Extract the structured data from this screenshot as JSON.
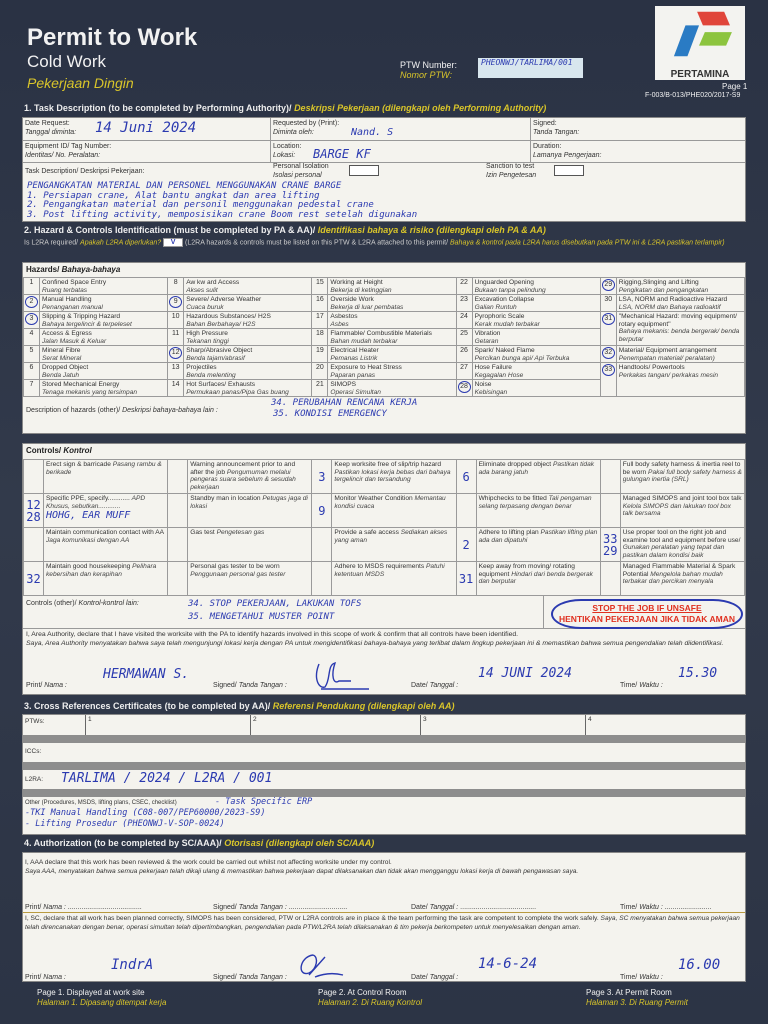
{
  "header": {
    "title": "Permit to Work",
    "subtitle": "Cold Work",
    "subtitle_id": "Pekerjaan Dingin",
    "ptw_label": "PTW Number:",
    "ptw_label_id": "Nomor PTW:",
    "ptw_value": "PHEONWJ/TARLIMA/001",
    "logo_text": "PERTAMINA",
    "page": "Page 1",
    "form_code": "F-003/B-013/PHE020/2017-S9"
  },
  "s1": {
    "title": "1. Task Description (to be completed by Performing Authority)/",
    "title_id": "Deskripsi Pekerjaan (dilengkapi oleh Performing Authority)",
    "date_label": "Date Request:",
    "date_label_id": "Tanggal diminta:",
    "date_value": "14 Juni 2024",
    "req_label": "Requested by (Print):",
    "req_label_id": "Diminta oleh:",
    "req_value": "Nand. S",
    "signed_label": "Signed:",
    "signed_label_id": "Tanda Tangan:",
    "equip_label": "Equipment ID/ Tag Number:",
    "equip_label_id": "Identitas/ No. Peralatan:",
    "loc_label": "Location:",
    "loc_label_id": "Lokasi:",
    "loc_value": "BARGE KF",
    "dur_label": "Duration:",
    "dur_label_id": "Lamanya Pengerjaan:",
    "task_label": "Task Description/ Deskripsi Pekerjaan:",
    "iso_label": "Personal Isolation",
    "iso_label_id": "Isolasi personal",
    "sanc_label": "Sanction to test",
    "sanc_label_id": "Izin Pengetesan",
    "task_lines": [
      "PENGANGKATAN MATERIAL DAN PERSONEL MENGGUNAKAN CRANE BARGE",
      "1. Persiapan crane, Alat bantu angkat dan area lifting",
      "2. Pengangkatan material dan personil menggunakan pedestal crane",
      "3. Post lifting activity, memposisikan crane Boom rest setelah digunakan"
    ]
  },
  "s2": {
    "title": "2. Hazard & Controls Identification (must be completed by PA & AA)/",
    "title_id": "Identifikasi bahaya & risiko (dilengkapi oleh PA & AA)",
    "l2ra_q": "Is L2RA required/",
    "l2ra_q_id": "Apakah L2RA diperlukan?",
    "l2ra_check": "V",
    "l2ra_note": "(L2RA hazards & controls must be listed on this PTW & L2RA attached to this permit/",
    "l2ra_note_id": "Bahaya & kontrol pada L2RA harus disebutkan pada PTW ini & L2RA pastikan terlampir)",
    "hazards_title": "Hazards/",
    "hazards_title_id": "Bahaya-bahaya",
    "hazard_columns": [
      [
        {
          "n": "1",
          "en": "Confined Space Entry",
          "id": "Ruang terbatas"
        },
        {
          "n": "2",
          "en": "Manual Handling",
          "id": "Penanganan manual",
          "circled": true
        },
        {
          "n": "3",
          "en": "Slipping & Tripping Hazard",
          "id": "Bahaya tergelincir & terpeleset",
          "circled": true
        },
        {
          "n": "4",
          "en": "Access & Egress",
          "id": "Jalan Masuk & Keluar"
        },
        {
          "n": "5",
          "en": "Mineral Fibre",
          "id": "Serat Mineral"
        },
        {
          "n": "6",
          "en": "Dropped Object",
          "id": "Benda Jatuh"
        },
        {
          "n": "7",
          "en": "Stored Mechanical Energy",
          "id": "Tenaga mekanis yang tersimpan"
        }
      ],
      [
        {
          "n": "8",
          "en": "Aw kw ard Access",
          "id": "Akses sulit"
        },
        {
          "n": "9",
          "en": "Severe/ Adverse Weather",
          "id": "Cuaca buruk",
          "circled": true
        },
        {
          "n": "10",
          "en": "Hazardous Substances/ H2S",
          "id": "Bahan Berbahaya/ H2S"
        },
        {
          "n": "11",
          "en": "High Pressure",
          "id": "Tekanan tinggi"
        },
        {
          "n": "12",
          "en": "Sharp/Abrasive Object",
          "id": "Benda tajam/abrasif",
          "circled": true
        },
        {
          "n": "13",
          "en": "Projectiles",
          "id": "Benda melenting"
        },
        {
          "n": "14",
          "en": "Hot Surfaces/ Exhausts",
          "id": "Permukaan panas/Pipa Gas buang"
        }
      ],
      [
        {
          "n": "15",
          "en": "Working at Height",
          "id": "Bekerja di ketinggian"
        },
        {
          "n": "16",
          "en": "Overside Work",
          "id": "Bekerja di luar pembatas"
        },
        {
          "n": "17",
          "en": "Asbestos",
          "id": "Asbes"
        },
        {
          "n": "18",
          "en": "Flammable/ Combustible Materials",
          "id": "Bahan mudah terbakar"
        },
        {
          "n": "19",
          "en": "Electrical Heater",
          "id": "Pemanas Listrik"
        },
        {
          "n": "20",
          "en": "Exposure to Heat Stress",
          "id": "Paparan panas"
        },
        {
          "n": "21",
          "en": "SIMOPS",
          "id": "Operasi Simultan"
        }
      ],
      [
        {
          "n": "22",
          "en": "Unguarded Opening",
          "id": "Bukaan tanpa pelindung"
        },
        {
          "n": "23",
          "en": "Excavation Collapse",
          "id": "Galian Runtuh"
        },
        {
          "n": "24",
          "en": "Pyrophoric Scale",
          "id": "Kerak mudah terbakar"
        },
        {
          "n": "25",
          "en": "Vibration",
          "id": "Getaran"
        },
        {
          "n": "26",
          "en": "Spark/ Naked Flame",
          "id": "Percikan bunga api/ Api Terbuka"
        },
        {
          "n": "27",
          "en": "Hose Failure",
          "id": "Kegagalan Hose"
        },
        {
          "n": "28",
          "en": "Noise",
          "id": "Kebisingan",
          "circled": true
        }
      ],
      [
        {
          "n": "29",
          "en": "Rigging,Slinging and Lifting",
          "id": "Pengikatan dan pengangkatan",
          "circled": true
        },
        {
          "n": "30",
          "en": "LSA, NORM and Radioactive Hazard",
          "id": "LSA, NORM dan Bahaya radioaktif"
        },
        {
          "n": "31",
          "en": "\"Mechanical Hazard: moving equipment/ rotary equipment\"",
          "id": "Bahaya mekanis: benda bergerak/ benda berputar",
          "circled": true,
          "span": 2
        },
        {
          "n": "32",
          "en": "Material/ Equipment arrangement",
          "id": "Penempatan material/ peralatan)",
          "circled": true
        },
        {
          "n": "33",
          "en": "Handtools/ Powertools",
          "id": "Perkakas tangan/ perkakas mesin",
          "circled": true,
          "span": 2
        }
      ]
    ],
    "hazards_other_label": "Description of hazards (other)/",
    "hazards_other_label_id": "Deskripsi bahaya-bahaya lain :",
    "hazards_other": [
      "34. PERUBAHAN RENCANA KERJA",
      "35. KONDISI EMERGENCY"
    ],
    "controls_title": "Controls/",
    "controls_title_id": "Kontrol",
    "controls_rows": [
      [
        {
          "mark": "",
          "en": "Erect sign & barricade",
          "id": "Pasang rambu & berikade"
        },
        {
          "mark": "",
          "en": "Warning announcement prior to and after the job",
          "id": "Pengumuman melalui pengeras suara sebelum & sesudah pekerjaan"
        },
        {
          "mark": "3",
          "en": "Keep worksite free of slip/trip hazard",
          "id": "Pastikan lokasi kerja bebas dari bahaya tergelincir dan tersandung"
        },
        {
          "mark": "6",
          "en": "Eliminate dropped object",
          "id": "Pastikan tidak ada barang jatuh"
        },
        {
          "mark": "",
          "en": "Full body safety harness & inertia reel to be worn",
          "id": "Pakai full body safety harness & gulungan inertia (SRL)"
        }
      ],
      [
        {
          "mark": "12 28",
          "en": "Specific PPE, specify............",
          "id": "APD Khusus, sebutkan............",
          "hand": "HOHG, EAR MUFF"
        },
        {
          "mark": "",
          "en": "Standby man in location",
          "id": "Petugas jaga di lokasi"
        },
        {
          "mark": "9",
          "en": "Monitor Weather Condition",
          "id": "Memantau kondisi cuaca"
        },
        {
          "mark": "",
          "en": "Whipchecks to be fitted",
          "id": "Tali pengaman selang terpasang dengan benar"
        },
        {
          "mark": "",
          "en": "Managed SIMOPS and joint tool box talk",
          "id": "Kelola SIMOPS dan lakukan tool box talk bersama"
        }
      ],
      [
        {
          "mark": "",
          "en": "Maintain communication contact with AA",
          "id": "Jaga komunikasi dengan AA"
        },
        {
          "mark": "",
          "en": "Gas test",
          "id": "Pengetesan gas"
        },
        {
          "mark": "",
          "en": "Provide a safe access",
          "id": "Sediakan akses yang aman"
        },
        {
          "mark": "2",
          "en": "Adhere to lifting plan",
          "id": "Pastikan lifting plan ada dan dipatuhi"
        },
        {
          "mark": "33 29",
          "en": "Use proper tool on the right job and examine tool and equipment before use/",
          "id": "Gunakan peralatan yang tepat dan pastikan dalam kondisi baik"
        }
      ],
      [
        {
          "mark": "32",
          "en": "Maintain good housekeeping",
          "id": "Pelihara kebersihan dan kerapihan"
        },
        {
          "mark": "",
          "en": "Personal gas  tester to be worn",
          "id": "Penggunaan personal gas tester"
        },
        {
          "mark": "",
          "en": "Adhere to MSDS requirements",
          "id": "Patuhi ketentuan MSDS"
        },
        {
          "mark": "31",
          "en": "Keep away from moving/ rotating equipment",
          "id": "Hindari dari benda bergerak dan berputar"
        },
        {
          "mark": "",
          "en": "Managed Flammable Material & Spark Potential",
          "id": "Mengelola bahan mudah terbakar dan percikan menyala"
        }
      ]
    ],
    "controls_other_label": "Controls (other)/",
    "controls_other_label_id": "Kontrol-kontrol lain:",
    "controls_other": [
      "34. STOP PEKERJAAN, LAKUKAN TOFS",
      "35. MENGETAHUI MUSTER POINT"
    ],
    "stop_en": "STOP THE JOB IF UNSAFE",
    "stop_id": "HENTIKAN PEKERJAAN JIKA TIDAK AMAN",
    "aa_decl_en": "I, Area Authority, declare that I have visited the worksite with the PA to identify hazards involved in this scope of work & confirm that all controls have been identified.",
    "aa_decl_id": "Saya, Area Authority menyatakan bahwa saya telah mengunjungi lokasi kerja dengan PA untuk mengidentifikasi bahaya-bahaya yang terlibat dalam lingkup pekerjaan ini & memastikan bahwa semua pengendalian telah diidentifikasi.",
    "aa_name": "HERMAWAN S.",
    "aa_date": "14 JUNI 2024",
    "aa_time": "15.30"
  },
  "labels": {
    "print": "Print/",
    "print_id": "Nama :",
    "signed": "Signed/",
    "signed_id": "Tanda Tangan :",
    "date": "Date/",
    "date_id": "Tanggal :",
    "time": "Time/",
    "time_id": "Waktu :"
  },
  "s3": {
    "title": "3. Cross References Certificates (to be completed by AA)/",
    "title_id": "Referensi Pendukung (dilengkapi oleh AA)",
    "ptws_label": "PTWs:",
    "ptw_slots": [
      "1",
      "2",
      "3",
      "4"
    ],
    "iccs_label": "ICCs:",
    "l2ra_label": "L2RA:",
    "l2ra_value": "TARLIMA / 2024 / L2RA / 001",
    "other_label": "Other (Procedures, MSDS, lifting plans, CSEC, checklist)",
    "other_lines": [
      "- Task Specific ERP",
      "-TKI Manual Handling (C08-007/PEP60000/2023-S9)",
      "- Lifting Prosedur (PHEONWJ-V-SOP-0024)"
    ]
  },
  "s4": {
    "title": "4. Authorization (to be completed by SC/AAA)/",
    "title_id": "Otorisasi (dilengkapi oleh SC/AAA)",
    "aaa_en": "I, AAA declare that this work has been reviewed & the work could be carried out whilst not affecting worksite under my control.",
    "aaa_id": "Saya AAA, menyatakan bahwa semua pekerjaan telah dikaji ulang & memastikan bahwa pekerjaan dapat dilaksanakan dan tidak akan mengganggu lokasi kerja di bawah pengawasan saya.",
    "sc_en": "I, SC, declare that all work has been planned correctly, SIMOPS has been considered, PTW or L2RA controls are in place & the team performing the task are competent to complete the work safely.",
    "sc_id": "Saya, SC menyatakan bahwa semua pekerjaan telah direncanakan dengan benar, operasi simultan telah dipertimbangkan, pengendalian pada PTW/L2RA telah dilaksanakan & tim pekerja berkompeten untuk menyelesaikan dengan aman.",
    "sc_name": "IndrA",
    "sc_date": "14-6-24",
    "sc_time": "16.00"
  },
  "footer": [
    {
      "en": "Page 1. Displayed at work site",
      "id": "Halaman 1. Dipasang ditempat kerja"
    },
    {
      "en": "Page 2. At Control Room",
      "id": "Halaman 2. Di Ruang Kontrol"
    },
    {
      "en": "Page 3. At Permit Room",
      "id": "Halaman 3. Di Ruang Permit"
    }
  ]
}
